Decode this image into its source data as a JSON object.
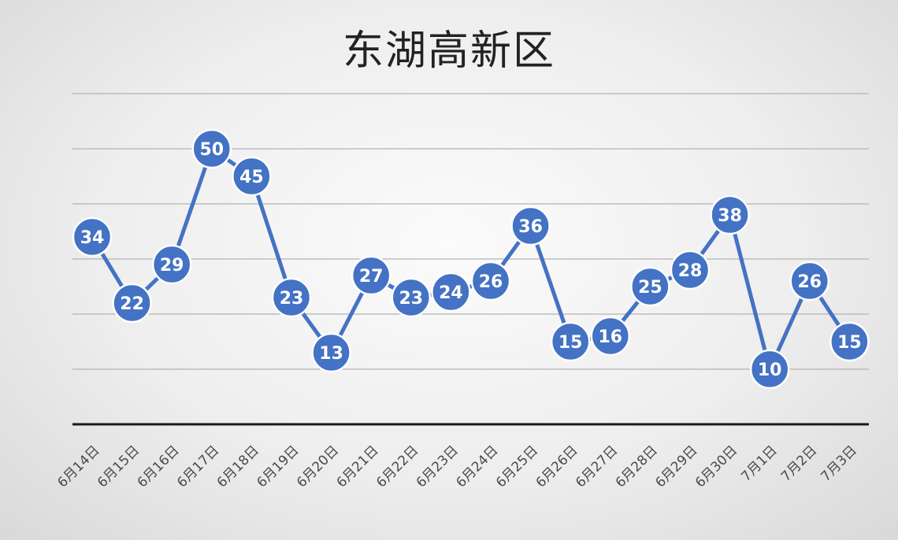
{
  "chart_data": {
    "type": "line",
    "title": "东湖高新区",
    "categories": [
      "6月14日",
      "6月15日",
      "6月16日",
      "6月17日",
      "6月18日",
      "6月19日",
      "6月20日",
      "6月21日",
      "6月22日",
      "6月23日",
      "6月24日",
      "6月25日",
      "6月26日",
      "6月27日",
      "6月28日",
      "6月29日",
      "6月30日",
      "7月1日",
      "7月2日",
      "7月3日"
    ],
    "values": [
      34,
      22,
      29,
      50,
      45,
      23,
      13,
      27,
      23,
      24,
      26,
      36,
      15,
      16,
      25,
      28,
      38,
      10,
      26,
      15
    ],
    "xlabel": "",
    "ylabel": "",
    "ylim": [
      0,
      60
    ],
    "grid": true,
    "data_labels": true,
    "colors": {
      "line": "#4472C4",
      "marker": "#4472C4",
      "marker_border": "#ffffff",
      "label": "#ffffff",
      "grid": "#b3b3b3",
      "axis": "#1a1a1a"
    }
  }
}
